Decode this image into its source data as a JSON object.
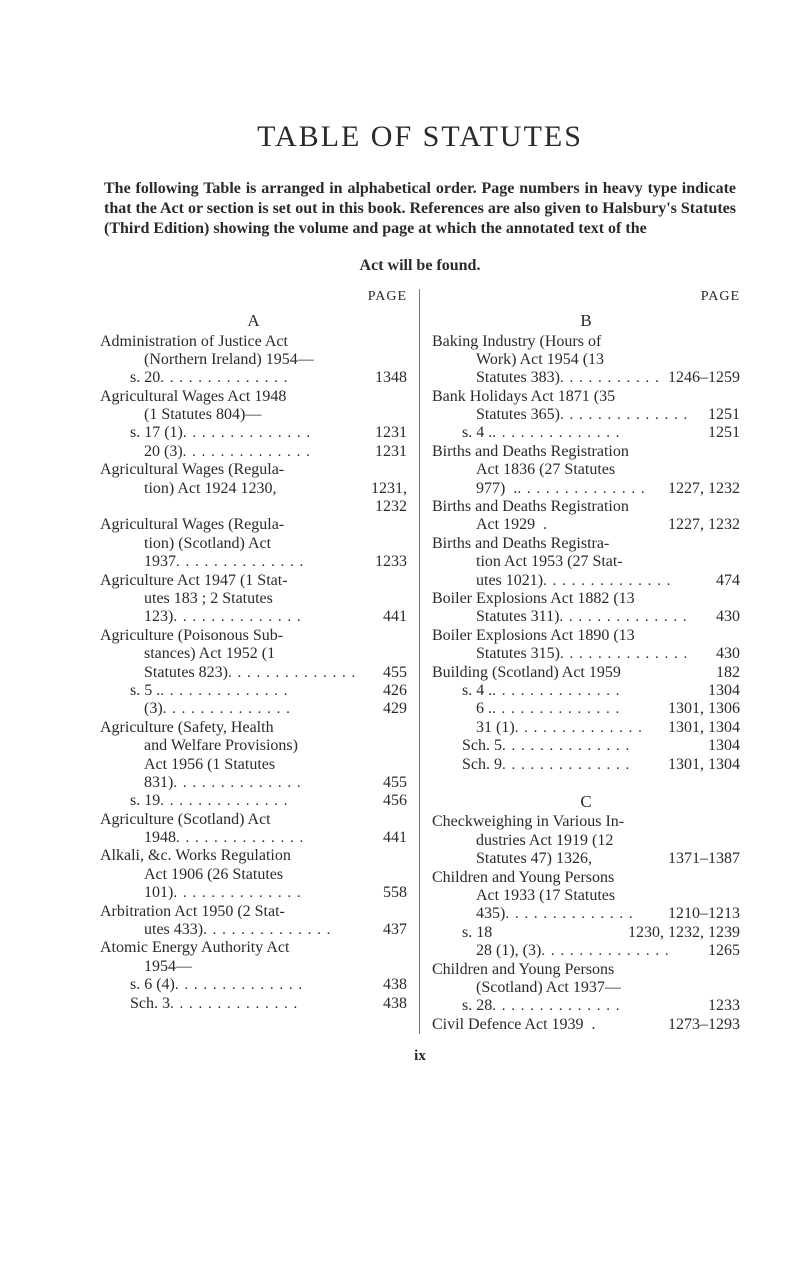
{
  "title": "TABLE OF STATUTES",
  "intro": "The following Table is arranged in alphabetical order. Page numbers in heavy type indicate that the Act or section is set out in this book. References are also given to Halsbury's Statutes (Third Edition) showing the volume and page at which the annotated text of the Act will be found.",
  "intro_last_line": "Act will be found.",
  "page_label": "PAGE",
  "folio": "ix",
  "left": {
    "letter": "A",
    "entries": [
      {
        "lines": [
          "Administration of Justice Act",
          "(Northern Ireland) 1954—"
        ],
        "rows": [
          {
            "label": "s. 20",
            "indent": "sub2",
            "page": "1348"
          }
        ]
      },
      {
        "lines": [
          "Agricultural Wages Act 1948",
          "(1 Statutes 804)—"
        ],
        "rows": [
          {
            "label": "s. 17 (1)",
            "indent": "sub2",
            "page": "1231"
          },
          {
            "label": "20 (3)",
            "indent": "sub1",
            "page": "1231"
          }
        ]
      },
      {
        "lines": [
          "Agricultural Wages (Regula-"
        ],
        "rows": [
          {
            "label": "tion) Act 1924 1230,",
            "indent": "sub1",
            "page": "1231,",
            "nodots": true
          },
          {
            "label": "",
            "indent": "sub1",
            "page": "1232",
            "nodots": true
          }
        ]
      },
      {
        "lines": [
          "Agricultural Wages (Regula-",
          "tion)  (Scotland)  Act"
        ],
        "rows": [
          {
            "label": "1937",
            "indent": "sub1",
            "page": "1233"
          }
        ]
      },
      {
        "lines": [
          "Agriculture Act 1947 (1 Stat-",
          "utes 183 ; 2 Statutes"
        ],
        "rows": [
          {
            "label": "123)",
            "indent": "sub1",
            "page": "441"
          }
        ]
      },
      {
        "lines": [
          "Agriculture (Poisonous Sub-",
          "stances) Act 1952 (1"
        ],
        "rows": [
          {
            "label": "Statutes 823)",
            "indent": "sub1",
            "page": "455"
          },
          {
            "label": "s. 5 .",
            "indent": "sub2",
            "page": "426"
          },
          {
            "label": "(3)",
            "indent": "sub1",
            "page": "429"
          }
        ]
      },
      {
        "lines": [
          "Agriculture (Safety, Health",
          "and Welfare Provisions)",
          "Act 1956 (1 Statutes"
        ],
        "rows": [
          {
            "label": "831)",
            "indent": "sub1",
            "page": "455"
          },
          {
            "label": "s. 19",
            "indent": "sub2",
            "page": "456"
          }
        ]
      },
      {
        "lines": [
          "Agriculture  (Scotland)  Act"
        ],
        "rows": [
          {
            "label": "1948",
            "indent": "sub1",
            "page": "441"
          }
        ]
      },
      {
        "lines": [
          "Alkali, &c. Works Regulation",
          "Act 1906 (26 Statutes"
        ],
        "rows": [
          {
            "label": "101)",
            "indent": "sub1",
            "page": "558"
          }
        ]
      },
      {
        "lines": [
          "Arbitration Act 1950 (2 Stat-"
        ],
        "rows": [
          {
            "label": "utes 433)",
            "indent": "sub1",
            "page": "437"
          }
        ]
      },
      {
        "lines": [
          "Atomic Energy Authority Act",
          "1954—"
        ],
        "rows": [
          {
            "label": "s. 6 (4)",
            "indent": "sub2",
            "page": "438"
          },
          {
            "label": "Sch. 3",
            "indent": "sub2",
            "page": "438"
          }
        ]
      }
    ]
  },
  "right": {
    "letter": "B",
    "entries": [
      {
        "lines": [
          "Baking Industry (Hours of",
          "Work) Act 1954 (13"
        ],
        "rows": [
          {
            "label": "Statutes 383)",
            "indent": "sub1",
            "page": "1246–1259"
          }
        ]
      },
      {
        "lines": [
          "Bank Holidays Act 1871 (35"
        ],
        "rows": [
          {
            "label": "Statutes 365)",
            "indent": "sub1",
            "page": "1251"
          },
          {
            "label": "s. 4 .",
            "indent": "sub2",
            "page": "1251"
          }
        ]
      },
      {
        "lines": [
          "Births and Deaths Registration",
          "Act 1836 (27 Statutes"
        ],
        "rows": [
          {
            "label": "977)  .",
            "indent": "sub1",
            "page": "1227, 1232"
          }
        ]
      },
      {
        "lines": [
          "Births and Deaths Registration"
        ],
        "rows": [
          {
            "label": "Act 1929  .",
            "indent": "sub1",
            "page": "1227, 1232",
            "nodots": true
          }
        ]
      },
      {
        "lines": [
          "Births and Deaths Registra-",
          "tion Act 1953 (27 Stat-"
        ],
        "rows": [
          {
            "label": "utes 1021)",
            "indent": "sub1",
            "page": "474"
          }
        ]
      },
      {
        "lines": [
          "Boiler Explosions Act 1882 (13"
        ],
        "rows": [
          {
            "label": "Statutes 311)",
            "indent": "sub1",
            "page": "430"
          }
        ]
      },
      {
        "lines": [
          "Boiler Explosions Act 1890 (13"
        ],
        "rows": [
          {
            "label": "Statutes 315)",
            "indent": "sub1",
            "page": "430"
          }
        ]
      },
      {
        "rows": [
          {
            "label": "Building (Scotland) Act 1959",
            "indent": "sub0",
            "page": "182",
            "nodots": true
          },
          {
            "label": "s. 4 .",
            "indent": "sub2",
            "page": "1304"
          },
          {
            "label": "6 .",
            "indent": "sub1",
            "page": "1301, 1306"
          },
          {
            "label": "31 (1)",
            "indent": "sub1",
            "page": "1301, 1304"
          },
          {
            "label": "Sch. 5",
            "indent": "sub2",
            "page": "1304"
          },
          {
            "label": "Sch. 9",
            "indent": "sub2",
            "page": "1301, 1304"
          }
        ]
      }
    ],
    "letter2": "C",
    "entries2": [
      {
        "lines": [
          "Checkweighing in Various In-",
          "dustries Act 1919 (12"
        ],
        "rows": [
          {
            "label": "Statutes 47) 1326,",
            "indent": "sub1",
            "page": "1371–1387",
            "nodots": true
          }
        ]
      },
      {
        "lines": [
          "Children and Young Persons",
          "Act 1933 (17 Statutes"
        ],
        "rows": [
          {
            "label": "435)",
            "indent": "sub1",
            "page": "1210–1213"
          },
          {
            "label": "s. 18",
            "indent": "sub2",
            "page": "1230, 1232, 1239",
            "nodots": true
          },
          {
            "label": "28 (1), (3)",
            "indent": "sub1",
            "page": "1265"
          }
        ]
      },
      {
        "lines": [
          "Children and Young Persons",
          "(Scotland) Act 1937—"
        ],
        "rows": [
          {
            "label": "s. 28",
            "indent": "sub2",
            "page": "1233"
          }
        ]
      },
      {
        "rows": [
          {
            "label": "Civil Defence Act 1939  .",
            "indent": "sub0",
            "page": "1273–1293",
            "nodots": true
          }
        ]
      }
    ]
  }
}
